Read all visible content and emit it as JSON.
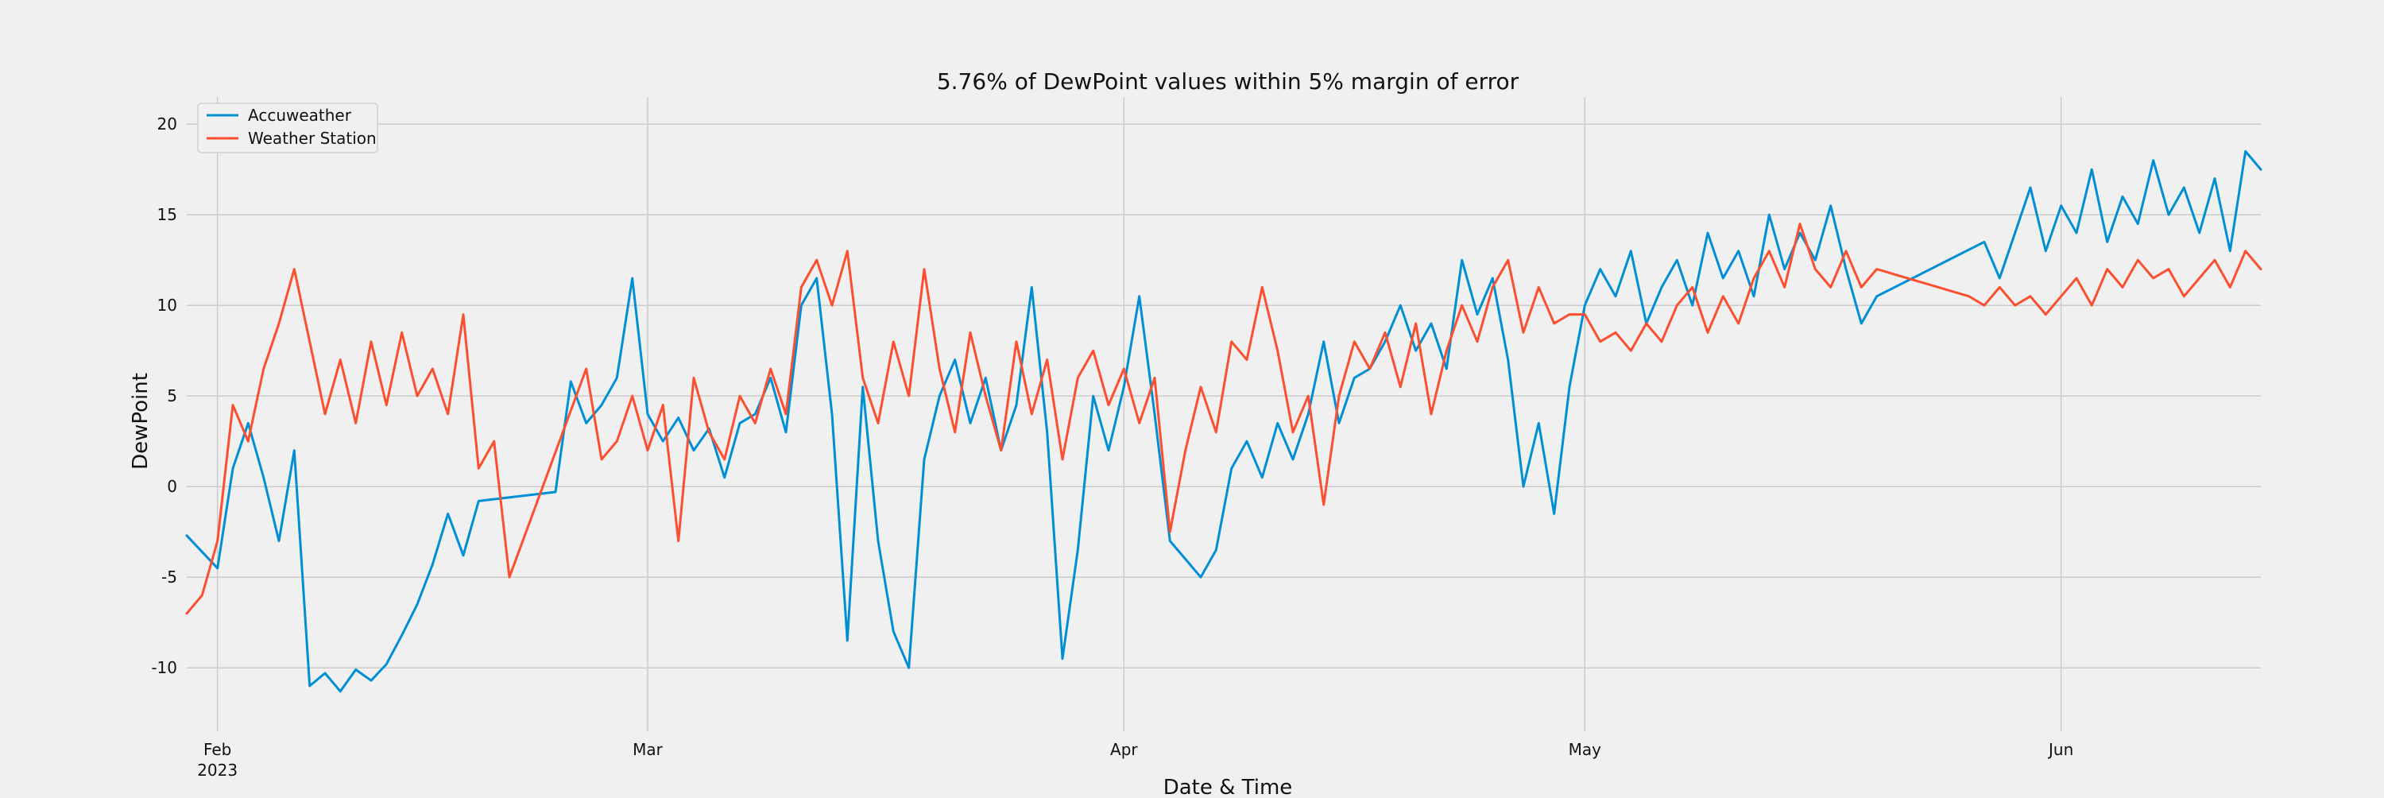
{
  "chart_data": {
    "type": "line",
    "title": "5.76% of DewPoint values within 5% margin of error",
    "xlabel": "Date & Time",
    "ylabel": "DewPoint",
    "x_axis_type": "date",
    "xlim": [
      "2023-01-30",
      "2023-06-14"
    ],
    "ylim": [
      -13.5,
      21.5
    ],
    "grid": true,
    "legend_position": "top-left",
    "x_ticks": [
      {
        "date": "2023-02-01",
        "label": "Feb",
        "sublabel": "2023"
      },
      {
        "date": "2023-03-01",
        "label": "Mar",
        "sublabel": ""
      },
      {
        "date": "2023-04-01",
        "label": "Apr",
        "sublabel": ""
      },
      {
        "date": "2023-05-01",
        "label": "May",
        "sublabel": ""
      },
      {
        "date": "2023-06-01",
        "label": "Jun",
        "sublabel": ""
      }
    ],
    "y_ticks": [
      -10,
      -5,
      0,
      5,
      10,
      15,
      20
    ],
    "series": [
      {
        "name": "Accuweather",
        "color": "#008fd5",
        "points": [
          [
            "2023-01-30",
            -2.7
          ],
          [
            "2023-01-31",
            -3.6
          ],
          [
            "2023-02-01",
            -4.5
          ],
          [
            "2023-02-02",
            1.0
          ],
          [
            "2023-02-03",
            3.5
          ],
          [
            "2023-02-04",
            0.5
          ],
          [
            "2023-02-05",
            -3.0
          ],
          [
            "2023-02-06",
            2.0
          ],
          [
            "2023-02-07",
            -11.0
          ],
          [
            "2023-02-08",
            -10.3
          ],
          [
            "2023-02-09",
            -11.3
          ],
          [
            "2023-02-10",
            -10.1
          ],
          [
            "2023-02-11",
            -10.7
          ],
          [
            "2023-02-12",
            -9.8
          ],
          [
            "2023-02-13",
            -8.2
          ],
          [
            "2023-02-14",
            -6.5
          ],
          [
            "2023-02-15",
            -4.3
          ],
          [
            "2023-02-16",
            -1.5
          ],
          [
            "2023-02-17",
            -3.8
          ],
          [
            "2023-02-18",
            -0.8
          ],
          [
            "2023-02-23",
            -0.3
          ],
          [
            "2023-02-24",
            5.8
          ],
          [
            "2023-02-25",
            3.5
          ],
          [
            "2023-02-26",
            4.5
          ],
          [
            "2023-02-27",
            6.0
          ],
          [
            "2023-02-28",
            11.5
          ],
          [
            "2023-03-01",
            4.0
          ],
          [
            "2023-03-02",
            2.5
          ],
          [
            "2023-03-03",
            3.8
          ],
          [
            "2023-03-04",
            2.0
          ],
          [
            "2023-03-05",
            3.2
          ],
          [
            "2023-03-06",
            0.5
          ],
          [
            "2023-03-07",
            3.5
          ],
          [
            "2023-03-08",
            4.0
          ],
          [
            "2023-03-09",
            6.0
          ],
          [
            "2023-03-10",
            3.0
          ],
          [
            "2023-03-11",
            10.0
          ],
          [
            "2023-03-12",
            11.5
          ],
          [
            "2023-03-13",
            4.0
          ],
          [
            "2023-03-14",
            -8.5
          ],
          [
            "2023-03-15",
            5.5
          ],
          [
            "2023-03-16",
            -3.0
          ],
          [
            "2023-03-17",
            -8.0
          ],
          [
            "2023-03-18",
            -10.0
          ],
          [
            "2023-03-19",
            1.5
          ],
          [
            "2023-03-20",
            5.0
          ],
          [
            "2023-03-21",
            7.0
          ],
          [
            "2023-03-22",
            3.5
          ],
          [
            "2023-03-23",
            6.0
          ],
          [
            "2023-03-24",
            2.0
          ],
          [
            "2023-03-25",
            4.5
          ],
          [
            "2023-03-26",
            11.0
          ],
          [
            "2023-03-27",
            3.0
          ],
          [
            "2023-03-28",
            -9.5
          ],
          [
            "2023-03-29",
            -3.5
          ],
          [
            "2023-03-30",
            5.0
          ],
          [
            "2023-03-31",
            2.0
          ],
          [
            "2023-04-01",
            5.5
          ],
          [
            "2023-04-02",
            10.5
          ],
          [
            "2023-04-03",
            4.0
          ],
          [
            "2023-04-04",
            -3.0
          ],
          [
            "2023-04-05",
            -4.0
          ],
          [
            "2023-04-06",
            -5.0
          ],
          [
            "2023-04-07",
            -3.5
          ],
          [
            "2023-04-08",
            1.0
          ],
          [
            "2023-04-09",
            2.5
          ],
          [
            "2023-04-10",
            0.5
          ],
          [
            "2023-04-11",
            3.5
          ],
          [
            "2023-04-12",
            1.5
          ],
          [
            "2023-04-13",
            4.0
          ],
          [
            "2023-04-14",
            8.0
          ],
          [
            "2023-04-15",
            3.5
          ],
          [
            "2023-04-16",
            6.0
          ],
          [
            "2023-04-17",
            6.5
          ],
          [
            "2023-04-18",
            8.0
          ],
          [
            "2023-04-19",
            10.0
          ],
          [
            "2023-04-20",
            7.5
          ],
          [
            "2023-04-21",
            9.0
          ],
          [
            "2023-04-22",
            6.5
          ],
          [
            "2023-04-23",
            12.5
          ],
          [
            "2023-04-24",
            9.5
          ],
          [
            "2023-04-25",
            11.5
          ],
          [
            "2023-04-26",
            7.0
          ],
          [
            "2023-04-27",
            0.0
          ],
          [
            "2023-04-28",
            3.5
          ],
          [
            "2023-04-29",
            -1.5
          ],
          [
            "2023-04-30",
            5.5
          ],
          [
            "2023-05-01",
            10.0
          ],
          [
            "2023-05-02",
            12.0
          ],
          [
            "2023-05-03",
            10.5
          ],
          [
            "2023-05-04",
            13.0
          ],
          [
            "2023-05-05",
            9.0
          ],
          [
            "2023-05-06",
            11.0
          ],
          [
            "2023-05-07",
            12.5
          ],
          [
            "2023-05-08",
            10.0
          ],
          [
            "2023-05-09",
            14.0
          ],
          [
            "2023-05-10",
            11.5
          ],
          [
            "2023-05-11",
            13.0
          ],
          [
            "2023-05-12",
            10.5
          ],
          [
            "2023-05-13",
            15.0
          ],
          [
            "2023-05-14",
            12.0
          ],
          [
            "2023-05-15",
            14.0
          ],
          [
            "2023-05-16",
            12.5
          ],
          [
            "2023-05-17",
            15.5
          ],
          [
            "2023-05-18",
            12.0
          ],
          [
            "2023-05-19",
            9.0
          ],
          [
            "2023-05-20",
            10.5
          ],
          [
            "2023-05-27",
            13.5
          ],
          [
            "2023-05-28",
            11.5
          ],
          [
            "2023-05-29",
            14.0
          ],
          [
            "2023-05-30",
            16.5
          ],
          [
            "2023-05-31",
            13.0
          ],
          [
            "2023-06-01",
            15.5
          ],
          [
            "2023-06-02",
            14.0
          ],
          [
            "2023-06-03",
            17.5
          ],
          [
            "2023-06-04",
            13.5
          ],
          [
            "2023-06-05",
            16.0
          ],
          [
            "2023-06-06",
            14.5
          ],
          [
            "2023-06-07",
            18.0
          ],
          [
            "2023-06-08",
            15.0
          ],
          [
            "2023-06-09",
            16.5
          ],
          [
            "2023-06-10",
            14.0
          ],
          [
            "2023-06-11",
            17.0
          ],
          [
            "2023-06-12",
            13.0
          ],
          [
            "2023-06-13",
            18.5
          ],
          [
            "2023-06-14",
            17.5
          ]
        ]
      },
      {
        "name": "Weather Station",
        "color": "#fc4f30",
        "points": [
          [
            "2023-01-30",
            -7.0
          ],
          [
            "2023-01-31",
            -6.0
          ],
          [
            "2023-02-01",
            -3.0
          ],
          [
            "2023-02-02",
            4.5
          ],
          [
            "2023-02-03",
            2.5
          ],
          [
            "2023-02-04",
            6.5
          ],
          [
            "2023-02-05",
            9.0
          ],
          [
            "2023-02-06",
            12.0
          ],
          [
            "2023-02-07",
            8.0
          ],
          [
            "2023-02-08",
            4.0
          ],
          [
            "2023-02-09",
            7.0
          ],
          [
            "2023-02-10",
            3.5
          ],
          [
            "2023-02-11",
            8.0
          ],
          [
            "2023-02-12",
            4.5
          ],
          [
            "2023-02-13",
            8.5
          ],
          [
            "2023-02-14",
            5.0
          ],
          [
            "2023-02-15",
            6.5
          ],
          [
            "2023-02-16",
            4.0
          ],
          [
            "2023-02-17",
            9.5
          ],
          [
            "2023-02-18",
            1.0
          ],
          [
            "2023-02-19",
            2.5
          ],
          [
            "2023-02-20",
            -5.0
          ],
          [
            "2023-02-25",
            6.5
          ],
          [
            "2023-02-26",
            1.5
          ],
          [
            "2023-02-27",
            2.5
          ],
          [
            "2023-02-28",
            5.0
          ],
          [
            "2023-03-01",
            2.0
          ],
          [
            "2023-03-02",
            4.5
          ],
          [
            "2023-03-03",
            -3.0
          ],
          [
            "2023-03-04",
            6.0
          ],
          [
            "2023-03-05",
            3.0
          ],
          [
            "2023-03-06",
            1.5
          ],
          [
            "2023-03-07",
            5.0
          ],
          [
            "2023-03-08",
            3.5
          ],
          [
            "2023-03-09",
            6.5
          ],
          [
            "2023-03-10",
            4.0
          ],
          [
            "2023-03-11",
            11.0
          ],
          [
            "2023-03-12",
            12.5
          ],
          [
            "2023-03-13",
            10.0
          ],
          [
            "2023-03-14",
            13.0
          ],
          [
            "2023-03-15",
            6.0
          ],
          [
            "2023-03-16",
            3.5
          ],
          [
            "2023-03-17",
            8.0
          ],
          [
            "2023-03-18",
            5.0
          ],
          [
            "2023-03-19",
            12.0
          ],
          [
            "2023-03-20",
            6.5
          ],
          [
            "2023-03-21",
            3.0
          ],
          [
            "2023-03-22",
            8.5
          ],
          [
            "2023-03-23",
            5.0
          ],
          [
            "2023-03-24",
            2.0
          ],
          [
            "2023-03-25",
            8.0
          ],
          [
            "2023-03-26",
            4.0
          ],
          [
            "2023-03-27",
            7.0
          ],
          [
            "2023-03-28",
            1.5
          ],
          [
            "2023-03-29",
            6.0
          ],
          [
            "2023-03-30",
            7.5
          ],
          [
            "2023-03-31",
            4.5
          ],
          [
            "2023-04-01",
            6.5
          ],
          [
            "2023-04-02",
            3.5
          ],
          [
            "2023-04-03",
            6.0
          ],
          [
            "2023-04-04",
            -2.5
          ],
          [
            "2023-04-05",
            2.0
          ],
          [
            "2023-04-06",
            5.5
          ],
          [
            "2023-04-07",
            3.0
          ],
          [
            "2023-04-08",
            8.0
          ],
          [
            "2023-04-09",
            7.0
          ],
          [
            "2023-04-10",
            11.0
          ],
          [
            "2023-04-11",
            7.5
          ],
          [
            "2023-04-12",
            3.0
          ],
          [
            "2023-04-13",
            5.0
          ],
          [
            "2023-04-14",
            -1.0
          ],
          [
            "2023-04-15",
            5.0
          ],
          [
            "2023-04-16",
            8.0
          ],
          [
            "2023-04-17",
            6.5
          ],
          [
            "2023-04-18",
            8.5
          ],
          [
            "2023-04-19",
            5.5
          ],
          [
            "2023-04-20",
            9.0
          ],
          [
            "2023-04-21",
            4.0
          ],
          [
            "2023-04-22",
            7.5
          ],
          [
            "2023-04-23",
            10.0
          ],
          [
            "2023-04-24",
            8.0
          ],
          [
            "2023-04-25",
            11.0
          ],
          [
            "2023-04-26",
            12.5
          ],
          [
            "2023-04-27",
            8.5
          ],
          [
            "2023-04-28",
            11.0
          ],
          [
            "2023-04-29",
            9.0
          ],
          [
            "2023-04-30",
            9.5
          ],
          [
            "2023-05-01",
            9.5
          ],
          [
            "2023-05-02",
            8.0
          ],
          [
            "2023-05-03",
            8.5
          ],
          [
            "2023-05-04",
            7.5
          ],
          [
            "2023-05-05",
            9.0
          ],
          [
            "2023-05-06",
            8.0
          ],
          [
            "2023-05-07",
            10.0
          ],
          [
            "2023-05-08",
            11.0
          ],
          [
            "2023-05-09",
            8.5
          ],
          [
            "2023-05-10",
            10.5
          ],
          [
            "2023-05-11",
            9.0
          ],
          [
            "2023-05-12",
            11.5
          ],
          [
            "2023-05-13",
            13.0
          ],
          [
            "2023-05-14",
            11.0
          ],
          [
            "2023-05-15",
            14.5
          ],
          [
            "2023-05-16",
            12.0
          ],
          [
            "2023-05-17",
            11.0
          ],
          [
            "2023-05-18",
            13.0
          ],
          [
            "2023-05-19",
            11.0
          ],
          [
            "2023-05-20",
            12.0
          ],
          [
            "2023-05-26",
            10.5
          ],
          [
            "2023-05-27",
            10.0
          ],
          [
            "2023-05-28",
            11.0
          ],
          [
            "2023-05-29",
            10.0
          ],
          [
            "2023-05-30",
            10.5
          ],
          [
            "2023-05-31",
            9.5
          ],
          [
            "2023-06-01",
            10.5
          ],
          [
            "2023-06-02",
            11.5
          ],
          [
            "2023-06-03",
            10.0
          ],
          [
            "2023-06-04",
            12.0
          ],
          [
            "2023-06-05",
            11.0
          ],
          [
            "2023-06-06",
            12.5
          ],
          [
            "2023-06-07",
            11.5
          ],
          [
            "2023-06-08",
            12.0
          ],
          [
            "2023-06-09",
            10.5
          ],
          [
            "2023-06-10",
            11.5
          ],
          [
            "2023-06-11",
            12.5
          ],
          [
            "2023-06-12",
            11.0
          ],
          [
            "2023-06-13",
            13.0
          ],
          [
            "2023-06-14",
            12.0
          ]
        ]
      }
    ]
  }
}
